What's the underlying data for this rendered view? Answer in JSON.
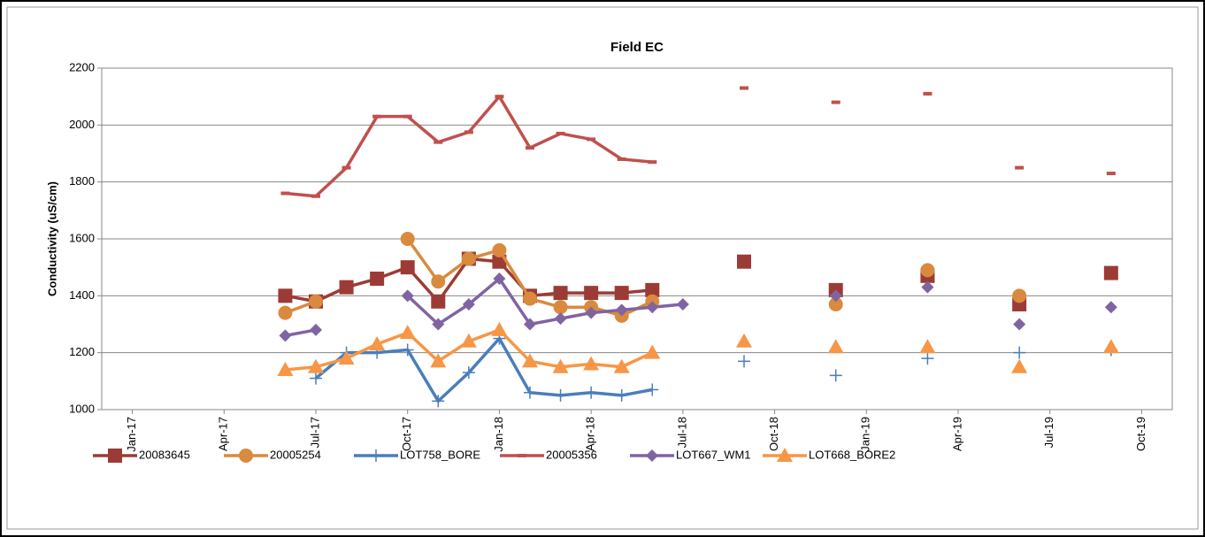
{
  "chart_data": {
    "type": "line",
    "title": "Field EC",
    "y_label": "Conductivity (uS/cm)",
    "x": [
      "Jun-17",
      "Jul-17",
      "Aug-17",
      "Sep-17",
      "Oct-17",
      "Nov-17",
      "Dec-17",
      "Jan-18",
      "Feb-18",
      "Mar-18",
      "Apr-18",
      "May-18",
      "Jun-18",
      "Jul-18",
      "Aug-18",
      "Sep-18",
      "Oct-18",
      "Nov-18",
      "Dec-18",
      "Jan-19",
      "Feb-19",
      "Mar-19",
      "Apr-19",
      "May-19",
      "Jun-19",
      "Jul-19",
      "Aug-19",
      "Sep-19"
    ],
    "xlim": [
      "Dec-16",
      "Nov-19"
    ],
    "xticks": [
      "Jan-17",
      "Apr-17",
      "Jul-17",
      "Oct-17",
      "Jan-18",
      "Apr-18",
      "Jul-18",
      "Oct-18",
      "Jan-19",
      "Apr-19",
      "Jul-19",
      "Oct-19"
    ],
    "ylim": [
      1000,
      2200
    ],
    "yticks": [
      1000,
      1200,
      1400,
      1600,
      1800,
      2000,
      2200
    ],
    "grid": true,
    "legend": "bottom",
    "series": [
      {
        "name": "20083645",
        "color": "#9c3b35",
        "marker": "square",
        "values": [
          1400,
          1380,
          1430,
          1460,
          1500,
          1380,
          1530,
          1520,
          1400,
          1410,
          1410,
          1410,
          1420,
          null,
          null,
          1520,
          null,
          null,
          1420,
          null,
          null,
          1470,
          null,
          null,
          1370,
          null,
          null,
          1480
        ]
      },
      {
        "name": "20005254",
        "color": "#d98a3e",
        "marker": "circle",
        "values": [
          1340,
          1380,
          null,
          null,
          1600,
          1450,
          1530,
          1560,
          1390,
          1360,
          1360,
          1330,
          1380,
          null,
          null,
          null,
          null,
          null,
          1370,
          null,
          null,
          1490,
          null,
          null,
          1400,
          null,
          null,
          null
        ]
      },
      {
        "name": "LOT758_BORE",
        "color": "#4a7ebb",
        "marker": "plus",
        "values": [
          null,
          1110,
          1200,
          1200,
          1210,
          1030,
          1130,
          1250,
          1060,
          1050,
          1060,
          1050,
          1070,
          null,
          null,
          1170,
          null,
          null,
          1120,
          null,
          null,
          1180,
          null,
          null,
          1200,
          null,
          null,
          1210
        ]
      },
      {
        "name": "20005356",
        "color": "#c0504d",
        "marker": "dash",
        "values": [
          1760,
          1750,
          1850,
          2030,
          2030,
          1940,
          1975,
          2100,
          1920,
          1970,
          1950,
          1880,
          1870,
          null,
          null,
          2130,
          null,
          null,
          2080,
          null,
          null,
          2110,
          null,
          null,
          1850,
          null,
          null,
          1830
        ]
      },
      {
        "name": "LOT667_WM1",
        "color": "#8064a2",
        "marker": "diamond",
        "values": [
          1260,
          1280,
          null,
          null,
          1400,
          1300,
          1370,
          1460,
          1300,
          1320,
          1340,
          1350,
          1360,
          1370,
          null,
          null,
          null,
          null,
          1400,
          null,
          null,
          1430,
          null,
          null,
          1300,
          null,
          null,
          1360
        ]
      },
      {
        "name": "LOT668_BORE2",
        "color": "#f79646",
        "marker": "triangle",
        "values": [
          1140,
          1150,
          1180,
          1230,
          1270,
          1170,
          1240,
          1280,
          1170,
          1150,
          1160,
          1150,
          1200,
          null,
          null,
          1240,
          null,
          null,
          1220,
          null,
          null,
          1220,
          null,
          null,
          1150,
          null,
          null,
          1220
        ]
      }
    ]
  }
}
